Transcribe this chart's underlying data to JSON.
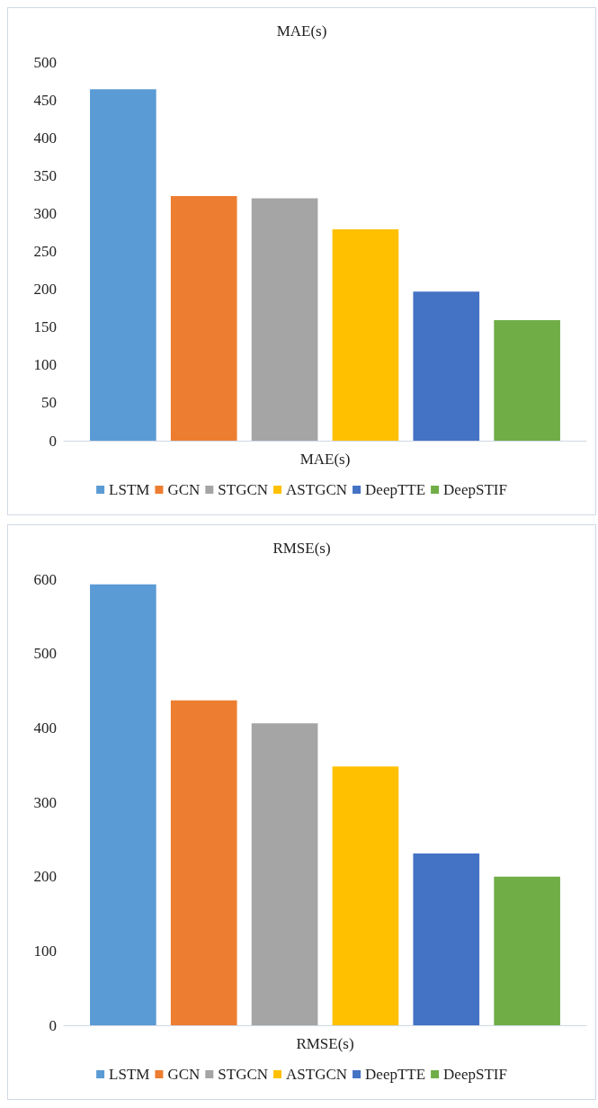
{
  "chart_data": [
    {
      "type": "bar",
      "title": "MAE(s)",
      "categories": [
        "MAE(s)"
      ],
      "series": [
        {
          "name": "LSTM",
          "color": "#5b9bd5",
          "values": [
            464
          ]
        },
        {
          "name": "GCN",
          "color": "#ed7d31",
          "values": [
            323
          ]
        },
        {
          "name": "STGCN",
          "color": "#a5a5a5",
          "values": [
            320
          ]
        },
        {
          "name": "ASTGCN",
          "color": "#ffc000",
          "values": [
            279
          ]
        },
        {
          "name": "DeepTTE",
          "color": "#4472c4",
          "values": [
            197
          ]
        },
        {
          "name": "DeepSTIF",
          "color": "#70ad47",
          "values": [
            159
          ]
        }
      ],
      "ylim": [
        0,
        500
      ],
      "yticks": [
        0,
        50,
        100,
        150,
        200,
        250,
        300,
        350,
        400,
        450,
        500
      ],
      "grid": false,
      "legend": "bottom"
    },
    {
      "type": "bar",
      "title": "RMSE(s)",
      "categories": [
        "RMSE(s)"
      ],
      "series": [
        {
          "name": "LSTM",
          "color": "#5b9bd5",
          "values": [
            593
          ]
        },
        {
          "name": "GCN",
          "color": "#ed7d31",
          "values": [
            437
          ]
        },
        {
          "name": "STGCN",
          "color": "#a5a5a5",
          "values": [
            406
          ]
        },
        {
          "name": "ASTGCN",
          "color": "#ffc000",
          "values": [
            348
          ]
        },
        {
          "name": "DeepTTE",
          "color": "#4472c4",
          "values": [
            231
          ]
        },
        {
          "name": "DeepSTIF",
          "color": "#70ad47",
          "values": [
            200
          ]
        }
      ],
      "ylim": [
        0,
        600
      ],
      "yticks": [
        0,
        100,
        200,
        300,
        400,
        500,
        600
      ],
      "grid": false,
      "legend": "bottom"
    }
  ]
}
